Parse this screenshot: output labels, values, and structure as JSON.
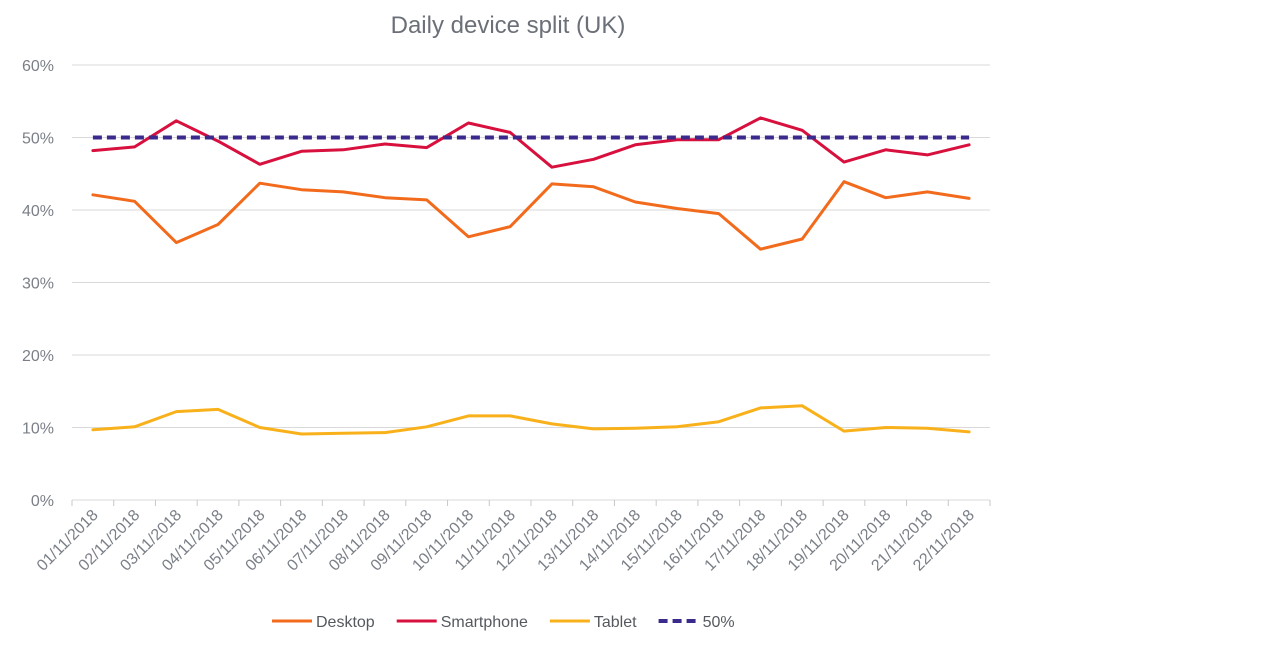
{
  "chart_data": {
    "type": "line",
    "title": "Daily device split (UK)",
    "xlabel": "",
    "ylabel": "",
    "ylim": [
      0,
      60
    ],
    "yticks": [
      "0%",
      "10%",
      "20%",
      "30%",
      "40%",
      "50%",
      "60%"
    ],
    "grid": true,
    "legend_position": "bottom",
    "categories": [
      "01/11/2018",
      "02/11/2018",
      "03/11/2018",
      "04/11/2018",
      "05/11/2018",
      "06/11/2018",
      "07/11/2018",
      "08/11/2018",
      "09/11/2018",
      "10/11/2018",
      "11/11/2018",
      "12/11/2018",
      "13/11/2018",
      "14/11/2018",
      "15/11/2018",
      "16/11/2018",
      "17/11/2018",
      "18/11/2018",
      "19/11/2018",
      "20/11/2018",
      "21/11/2018",
      "22/11/2018"
    ],
    "series": [
      {
        "name": "Desktop",
        "color": "#f26b1d",
        "dashed": false,
        "values": [
          42.1,
          41.2,
          35.5,
          38.0,
          43.7,
          42.8,
          42.5,
          41.7,
          41.4,
          36.3,
          37.7,
          43.6,
          43.2,
          41.1,
          40.2,
          39.5,
          34.6,
          36.0,
          43.9,
          41.7,
          42.5,
          41.6
        ]
      },
      {
        "name": "Smartphone",
        "color": "#d7103e",
        "dashed": false,
        "values": [
          48.2,
          48.7,
          52.3,
          49.5,
          46.3,
          48.1,
          48.3,
          49.1,
          48.6,
          52.0,
          50.7,
          45.9,
          47.0,
          49.0,
          49.7,
          49.7,
          52.7,
          51.0,
          46.6,
          48.3,
          47.6,
          49.0
        ]
      },
      {
        "name": "Tablet",
        "color": "#f9b11b",
        "dashed": false,
        "values": [
          9.7,
          10.1,
          12.2,
          12.5,
          10.0,
          9.1,
          9.2,
          9.3,
          10.1,
          11.6,
          11.6,
          10.5,
          9.8,
          9.9,
          10.1,
          10.8,
          12.7,
          13.0,
          9.5,
          10.0,
          9.9,
          9.4
        ]
      },
      {
        "name": "50%",
        "color": "#3b2a8c",
        "dashed": true,
        "values": [
          50,
          50,
          50,
          50,
          50,
          50,
          50,
          50,
          50,
          50,
          50,
          50,
          50,
          50,
          50,
          50,
          50,
          50,
          50,
          50,
          50,
          50
        ]
      }
    ]
  }
}
